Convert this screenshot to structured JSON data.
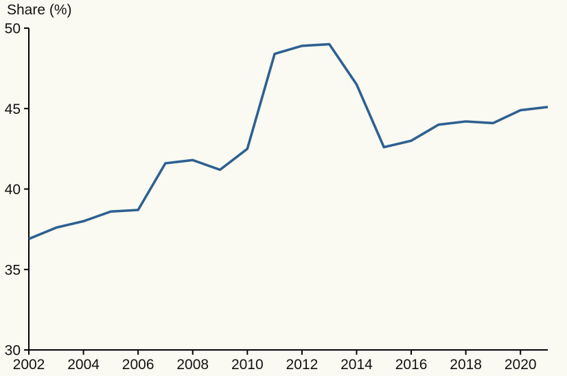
{
  "colors": {
    "background": "#FBFAF2",
    "line": "#2E6191",
    "axis": "#000000",
    "text": "#111111"
  },
  "chart_data": {
    "type": "line",
    "title": "",
    "ylabel": "Share (%)",
    "xlabel": "",
    "x": [
      2002,
      2003,
      2004,
      2005,
      2006,
      2007,
      2008,
      2009,
      2010,
      2011,
      2012,
      2013,
      2014,
      2015,
      2016,
      2017,
      2018,
      2019,
      2020,
      2021
    ],
    "series": [
      {
        "name": "share",
        "values": [
          36.9,
          37.6,
          38.0,
          38.6,
          38.7,
          41.6,
          41.8,
          41.2,
          42.5,
          48.4,
          48.9,
          49.0,
          46.5,
          42.6,
          43.0,
          44.0,
          44.2,
          44.1,
          44.9,
          45.1
        ]
      }
    ],
    "xlim": [
      2002,
      2021
    ],
    "ylim": [
      30,
      50
    ],
    "xticks": [
      2002,
      2004,
      2006,
      2008,
      2010,
      2012,
      2014,
      2016,
      2018,
      2020
    ],
    "yticks": [
      30,
      35,
      40,
      45,
      50
    ],
    "grid": false,
    "legend": "none"
  }
}
